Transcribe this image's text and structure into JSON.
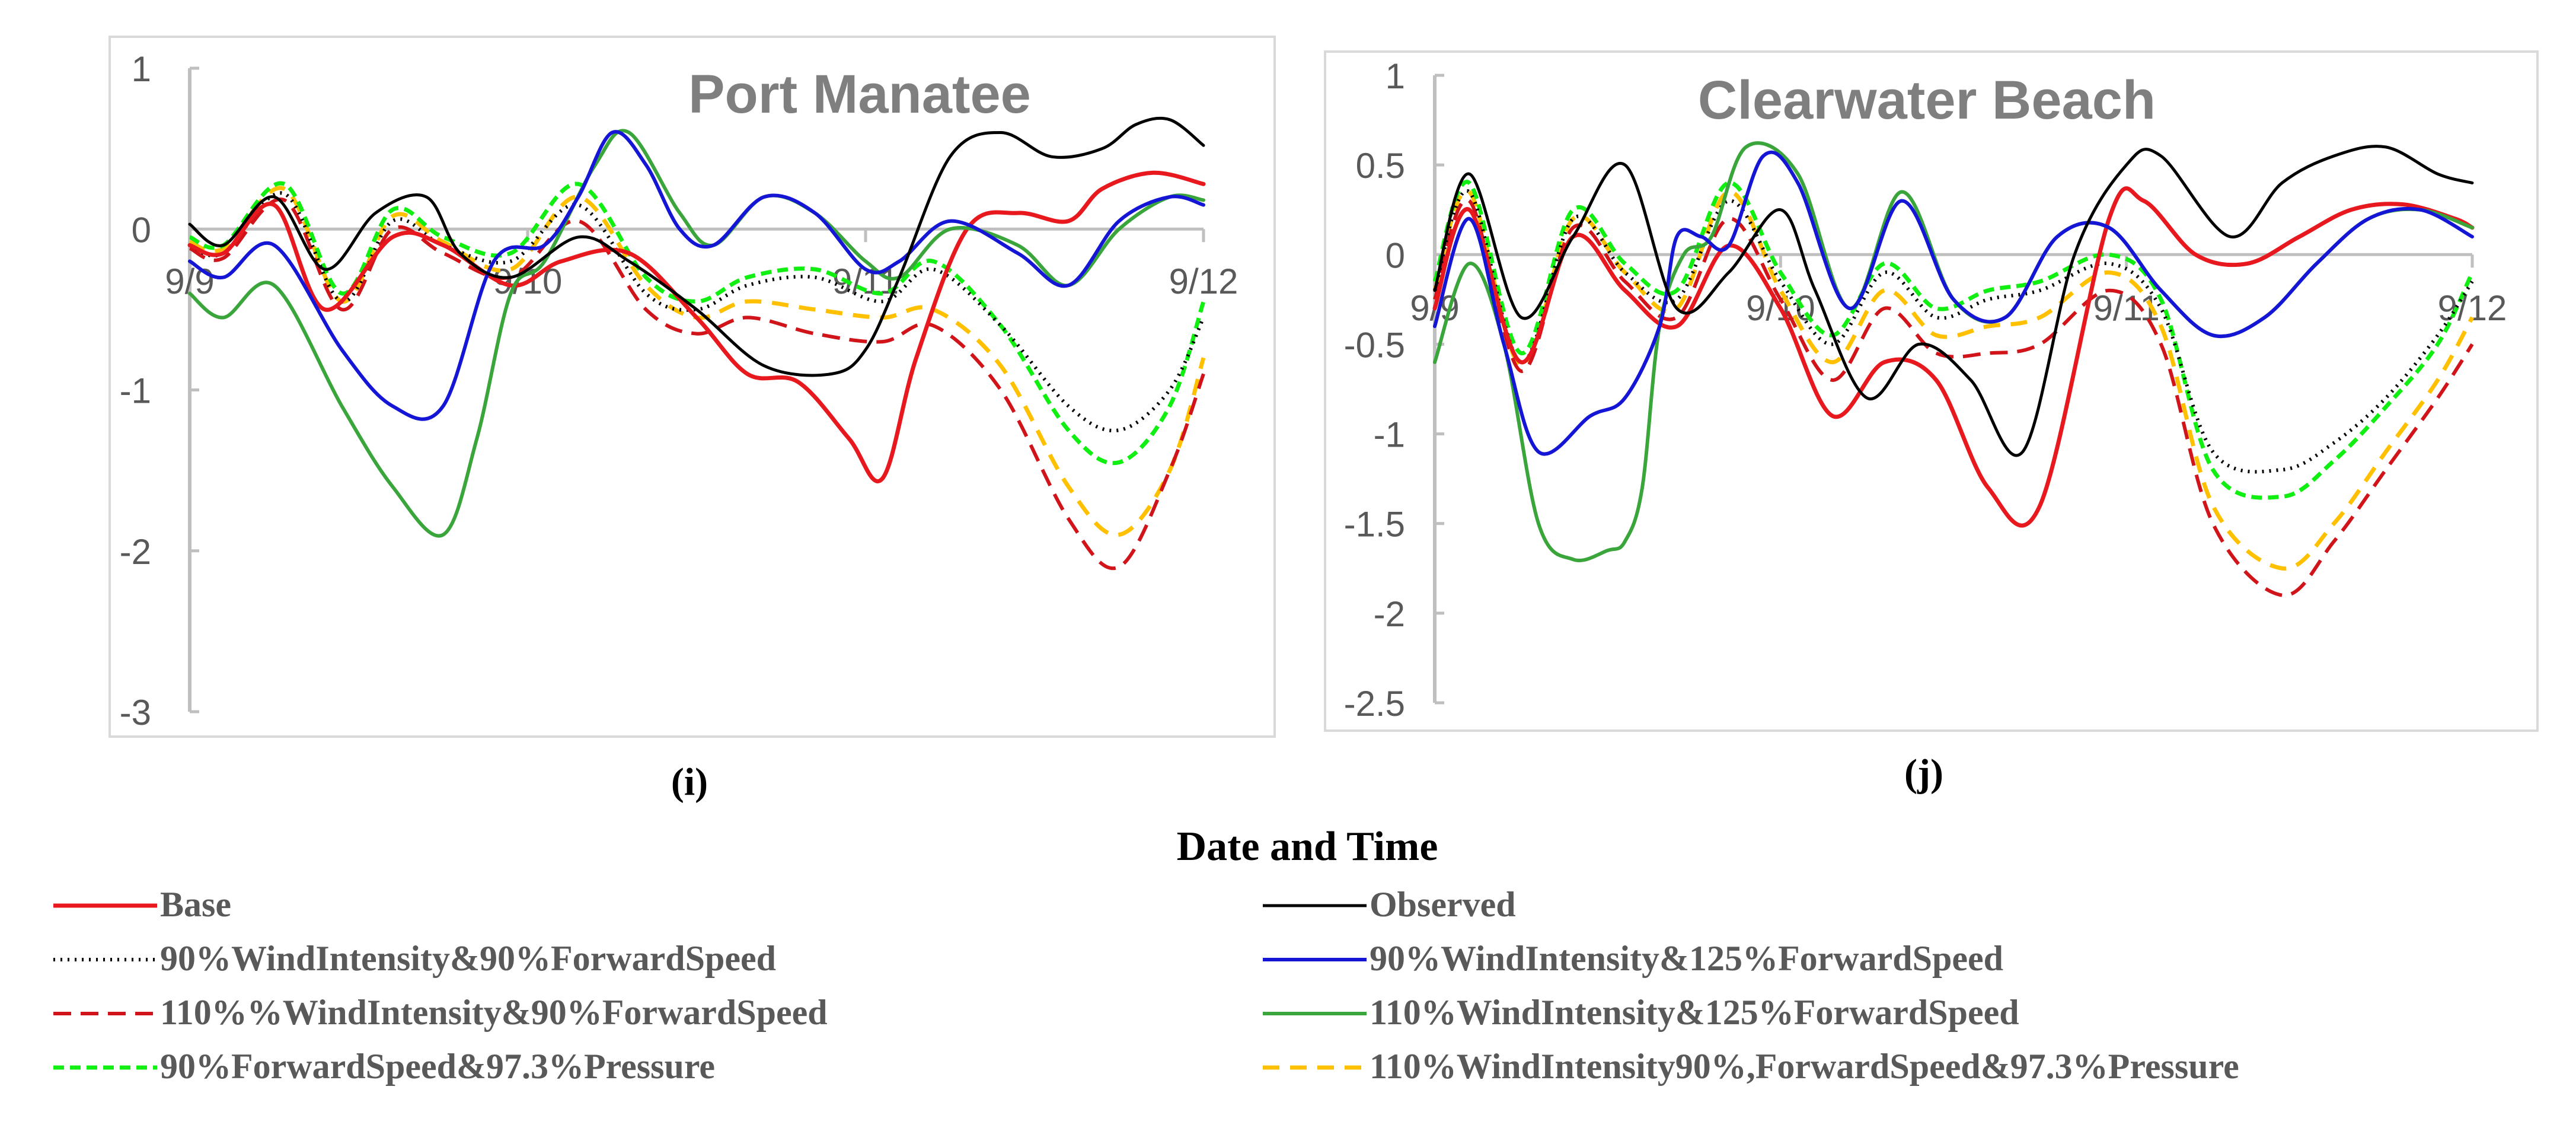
{
  "figure": {
    "common_xlabel": "Date and Time",
    "colors": {
      "base": "#e8191e",
      "observed": "#000000",
      "wi90_fs90": "#000000",
      "wi90_fs125": "#1515d6",
      "wi110_fs90": "#d0141a",
      "wi110_fs125": "#3aa53a",
      "fs90_p973": "#11ee11",
      "wi110_fs90_p973": "#ffc000",
      "axis": "#bfbfbf",
      "frame": "#d9d9d9",
      "tick_text": "#595959",
      "title_text": "#7f7f7f",
      "legend_text": "#595959"
    }
  },
  "legend": [
    {
      "key": "base",
      "label": "Base",
      "style": "solid"
    },
    {
      "key": "observed",
      "label": "Observed",
      "style": "solid-thin"
    },
    {
      "key": "wi90_fs90",
      "label": "90%WindIntensity&90%ForwardSpeed",
      "style": "dotted"
    },
    {
      "key": "wi90_fs125",
      "label": "90%WindIntensity&125%ForwardSpeed",
      "style": "solid"
    },
    {
      "key": "wi110_fs90",
      "label": "110%%WindIntensity&90%ForwardSpeed",
      "style": "dashed"
    },
    {
      "key": "wi110_fs125",
      "label": "110%WindIntensity&125%ForwardSpeed",
      "style": "solid"
    },
    {
      "key": "fs90_p973",
      "label": "90%ForwardSpeed&97.3%Pressure",
      "style": "dashed-short"
    },
    {
      "key": "wi110_fs90_p973",
      "label": "110%WindIntensity90%,ForwardSpeed&97.3%Pressure",
      "style": "dashed"
    }
  ],
  "chart_data": [
    {
      "type": "line",
      "panel_label": "(i)",
      "title": "Port Manatee",
      "xlabel": "",
      "ylabel": "",
      "x_ticks": [
        "9/9",
        "9/10",
        "9/11",
        "9/12"
      ],
      "xlim": [
        0,
        3
      ],
      "ylim": [
        -3,
        1
      ],
      "y_ticks": [
        1,
        0,
        -1,
        -2,
        -3
      ],
      "grid": false,
      "series": [
        {
          "key": "base",
          "name": "Base",
          "x": [
            0,
            0.1,
            0.25,
            0.4,
            0.6,
            0.75,
            0.95,
            1.1,
            1.3,
            1.5,
            1.65,
            1.8,
            1.95,
            2.05,
            2.15,
            2.3,
            2.45,
            2.6,
            2.7,
            2.85,
            3.0
          ],
          "y": [
            -0.1,
            -0.15,
            0.15,
            -0.5,
            -0.05,
            -0.1,
            -0.35,
            -0.2,
            -0.15,
            -0.55,
            -0.9,
            -0.95,
            -1.3,
            -1.55,
            -0.8,
            0.0,
            0.1,
            0.05,
            0.25,
            0.35,
            0.28
          ]
        },
        {
          "key": "observed",
          "name": "Observed",
          "x": [
            0,
            0.1,
            0.25,
            0.4,
            0.55,
            0.7,
            0.8,
            0.95,
            1.15,
            1.3,
            1.5,
            1.7,
            1.9,
            2.0,
            2.1,
            2.25,
            2.4,
            2.55,
            2.7,
            2.8,
            2.9,
            3.0
          ],
          "y": [
            0.03,
            -0.1,
            0.2,
            -0.25,
            0.1,
            0.2,
            -0.15,
            -0.3,
            -0.05,
            -0.2,
            -0.5,
            -0.85,
            -0.9,
            -0.75,
            -0.3,
            0.45,
            0.6,
            0.45,
            0.5,
            0.65,
            0.68,
            0.52
          ]
        },
        {
          "key": "wi90_fs90",
          "name": "90%WindIntensity&90%ForwardSpeed",
          "x": [
            0,
            0.1,
            0.28,
            0.45,
            0.6,
            0.75,
            0.95,
            1.15,
            1.35,
            1.5,
            1.65,
            1.85,
            2.05,
            2.2,
            2.4,
            2.6,
            2.75,
            2.9,
            3.0
          ],
          "y": [
            -0.1,
            -0.15,
            0.22,
            -0.45,
            0.05,
            -0.1,
            -0.2,
            0.15,
            -0.4,
            -0.5,
            -0.35,
            -0.3,
            -0.45,
            -0.25,
            -0.6,
            -1.1,
            -1.25,
            -1.0,
            -0.55
          ]
        },
        {
          "key": "wi90_fs125",
          "name": "90%WindIntensity&125%ForwardSpeed",
          "x": [
            0,
            0.1,
            0.25,
            0.45,
            0.6,
            0.75,
            0.9,
            1.05,
            1.15,
            1.25,
            1.35,
            1.45,
            1.55,
            1.7,
            1.85,
            2.0,
            2.1,
            2.25,
            2.45,
            2.6,
            2.75,
            2.9,
            3.0
          ],
          "y": [
            -0.2,
            -0.3,
            -0.1,
            -0.75,
            -1.1,
            -1.1,
            -0.2,
            -0.1,
            0.2,
            0.6,
            0.4,
            0.0,
            -0.1,
            0.2,
            0.1,
            -0.25,
            -0.2,
            0.05,
            -0.15,
            -0.35,
            0.05,
            0.2,
            0.15
          ]
        },
        {
          "key": "wi110_fs90",
          "name": "110%%WindIntensity&90%ForwardSpeed",
          "x": [
            0,
            0.1,
            0.28,
            0.45,
            0.6,
            0.75,
            0.95,
            1.15,
            1.35,
            1.5,
            1.65,
            1.85,
            2.05,
            2.2,
            2.4,
            2.6,
            2.75,
            2.9,
            3.0
          ],
          "y": [
            -0.12,
            -0.18,
            0.18,
            -0.5,
            0.0,
            -0.15,
            -0.3,
            0.05,
            -0.5,
            -0.65,
            -0.55,
            -0.65,
            -0.7,
            -0.6,
            -1.0,
            -1.8,
            -2.1,
            -1.5,
            -0.9
          ]
        },
        {
          "key": "wi110_fs125",
          "name": "110%WindIntensity&125%ForwardSpeed",
          "x": [
            0,
            0.1,
            0.25,
            0.45,
            0.6,
            0.75,
            0.85,
            0.95,
            1.05,
            1.2,
            1.3,
            1.45,
            1.55,
            1.7,
            1.85,
            2.0,
            2.1,
            2.25,
            2.45,
            2.6,
            2.75,
            2.9,
            3.0
          ],
          "y": [
            -0.4,
            -0.55,
            -0.35,
            -1.1,
            -1.6,
            -1.9,
            -1.3,
            -0.4,
            -0.2,
            0.4,
            0.6,
            0.1,
            -0.1,
            0.2,
            0.1,
            -0.2,
            -0.3,
            0.0,
            -0.1,
            -0.35,
            0.0,
            0.2,
            0.18
          ]
        },
        {
          "key": "fs90_p973",
          "name": "90%ForwardSpeed&97.3%Pressure",
          "x": [
            0,
            0.1,
            0.28,
            0.45,
            0.6,
            0.75,
            0.95,
            1.15,
            1.35,
            1.5,
            1.65,
            1.85,
            2.05,
            2.2,
            2.4,
            2.6,
            2.75,
            2.9,
            3.0
          ],
          "y": [
            -0.05,
            -0.1,
            0.28,
            -0.4,
            0.12,
            -0.05,
            -0.15,
            0.28,
            -0.3,
            -0.45,
            -0.3,
            -0.25,
            -0.4,
            -0.2,
            -0.6,
            -1.25,
            -1.45,
            -1.1,
            -0.45
          ]
        },
        {
          "key": "wi110_fs90_p973",
          "name": "110%WindIntensity90%,ForwardSpeed&97.3%Pressure",
          "x": [
            0,
            0.1,
            0.28,
            0.45,
            0.6,
            0.75,
            0.95,
            1.15,
            1.35,
            1.5,
            1.65,
            1.85,
            2.05,
            2.2,
            2.4,
            2.6,
            2.75,
            2.9,
            3.0
          ],
          "y": [
            -0.08,
            -0.12,
            0.25,
            -0.45,
            0.08,
            -0.08,
            -0.25,
            0.2,
            -0.35,
            -0.55,
            -0.45,
            -0.5,
            -0.55,
            -0.5,
            -0.85,
            -1.6,
            -1.9,
            -1.5,
            -0.8
          ]
        }
      ]
    },
    {
      "type": "line",
      "panel_label": "(j)",
      "title": "Clearwater Beach",
      "xlabel": "",
      "ylabel": "",
      "x_ticks": [
        "9/9",
        "9/10",
        "9/11",
        "9/12"
      ],
      "xlim": [
        0,
        3
      ],
      "ylim": [
        -2.5,
        1
      ],
      "y_ticks": [
        1,
        0.5,
        0,
        -0.5,
        -1,
        -1.5,
        -2,
        -2.5
      ],
      "grid": false,
      "series": [
        {
          "key": "base",
          "name": "Base",
          "x": [
            0,
            0.1,
            0.25,
            0.4,
            0.55,
            0.7,
            0.85,
            1.0,
            1.15,
            1.3,
            1.45,
            1.6,
            1.75,
            1.95,
            2.05,
            2.2,
            2.35,
            2.5,
            2.65,
            2.8,
            2.95,
            3.0
          ],
          "y": [
            -0.3,
            0.25,
            -0.6,
            0.1,
            -0.2,
            -0.4,
            0.05,
            -0.3,
            -0.9,
            -0.6,
            -0.7,
            -1.3,
            -1.4,
            0.2,
            0.3,
            0.0,
            -0.05,
            0.1,
            0.25,
            0.28,
            0.2,
            0.15
          ]
        },
        {
          "key": "observed",
          "name": "Observed",
          "x": [
            0,
            0.1,
            0.25,
            0.4,
            0.55,
            0.7,
            0.85,
            1.0,
            1.1,
            1.25,
            1.4,
            1.55,
            1.7,
            1.85,
            2.0,
            2.1,
            2.3,
            2.45,
            2.6,
            2.75,
            2.9,
            3.0
          ],
          "y": [
            -0.2,
            0.45,
            -0.35,
            0.1,
            0.5,
            -0.3,
            -0.1,
            0.25,
            -0.2,
            -0.8,
            -0.5,
            -0.7,
            -1.1,
            0.0,
            0.5,
            0.55,
            0.1,
            0.4,
            0.55,
            0.6,
            0.45,
            0.4
          ]
        },
        {
          "key": "wi90_fs90",
          "name": "90%WindIntensity&90%ForwardSpeed",
          "x": [
            0,
            0.1,
            0.25,
            0.4,
            0.55,
            0.7,
            0.85,
            1.0,
            1.15,
            1.3,
            1.45,
            1.6,
            1.75,
            1.95,
            2.1,
            2.25,
            2.45,
            2.6,
            2.75,
            2.9,
            3.0
          ],
          "y": [
            -0.2,
            0.35,
            -0.6,
            0.2,
            -0.1,
            -0.25,
            0.3,
            -0.15,
            -0.5,
            -0.1,
            -0.35,
            -0.25,
            -0.2,
            -0.05,
            -0.3,
            -1.1,
            -1.2,
            -1.05,
            -0.8,
            -0.45,
            -0.15
          ]
        },
        {
          "key": "wi90_fs125",
          "name": "90%WindIntensity&125%ForwardSpeed",
          "x": [
            0,
            0.1,
            0.2,
            0.3,
            0.45,
            0.55,
            0.65,
            0.7,
            0.77,
            0.85,
            0.95,
            1.05,
            1.2,
            1.35,
            1.5,
            1.65,
            1.8,
            1.95,
            2.1,
            2.25,
            2.4,
            2.55,
            2.7,
            2.85,
            3.0
          ],
          "y": [
            -0.4,
            0.2,
            -0.5,
            -1.1,
            -0.9,
            -0.8,
            -0.4,
            0.1,
            0.1,
            0.05,
            0.55,
            0.4,
            -0.3,
            0.3,
            -0.25,
            -0.35,
            0.1,
            0.15,
            -0.2,
            -0.45,
            -0.35,
            -0.05,
            0.2,
            0.25,
            0.1
          ]
        },
        {
          "key": "wi110_fs90",
          "name": "110%%WindIntensity&90%ForwardSpeed",
          "x": [
            0,
            0.1,
            0.25,
            0.4,
            0.55,
            0.7,
            0.85,
            1.0,
            1.15,
            1.3,
            1.45,
            1.6,
            1.75,
            1.95,
            2.1,
            2.25,
            2.45,
            2.6,
            2.75,
            2.9,
            3.0
          ],
          "y": [
            -0.25,
            0.3,
            -0.65,
            0.15,
            -0.15,
            -0.35,
            0.2,
            -0.25,
            -0.7,
            -0.3,
            -0.55,
            -0.55,
            -0.5,
            -0.2,
            -0.5,
            -1.5,
            -1.9,
            -1.6,
            -1.2,
            -0.8,
            -0.5
          ]
        },
        {
          "key": "wi110_fs125",
          "name": "110%WindIntensity&125%ForwardSpeed",
          "x": [
            0,
            0.1,
            0.2,
            0.3,
            0.4,
            0.5,
            0.55,
            0.6,
            0.65,
            0.72,
            0.8,
            0.9,
            1.05,
            1.2,
            1.35,
            1.5,
            1.65,
            1.8,
            1.95,
            2.1,
            2.25,
            2.4,
            2.55,
            2.7,
            2.85,
            3.0
          ],
          "y": [
            -0.6,
            -0.05,
            -0.5,
            -1.5,
            -1.7,
            -1.65,
            -1.6,
            -1.3,
            -0.4,
            0.0,
            0.1,
            0.6,
            0.45,
            -0.3,
            0.35,
            -0.25,
            -0.35,
            0.1,
            0.15,
            -0.2,
            -0.45,
            -0.35,
            -0.05,
            0.2,
            0.25,
            0.15
          ]
        },
        {
          "key": "fs90_p973",
          "name": "90%ForwardSpeed&97.3%Pressure",
          "x": [
            0,
            0.1,
            0.25,
            0.4,
            0.55,
            0.7,
            0.85,
            1.0,
            1.15,
            1.3,
            1.45,
            1.6,
            1.75,
            1.95,
            2.1,
            2.25,
            2.45,
            2.6,
            2.75,
            2.9,
            3.0
          ],
          "y": [
            -0.15,
            0.4,
            -0.55,
            0.25,
            -0.05,
            -0.2,
            0.4,
            -0.1,
            -0.45,
            -0.05,
            -0.3,
            -0.2,
            -0.15,
            0.0,
            -0.25,
            -1.2,
            -1.35,
            -1.15,
            -0.85,
            -0.5,
            -0.1
          ]
        },
        {
          "key": "wi110_fs90_p973",
          "name": "110%WindIntensity90%,ForwardSpeed&97.3%Pressure",
          "x": [
            0,
            0.1,
            0.25,
            0.4,
            0.55,
            0.7,
            0.85,
            1.0,
            1.15,
            1.3,
            1.45,
            1.6,
            1.75,
            1.95,
            2.1,
            2.25,
            2.45,
            2.6,
            2.75,
            2.9,
            3.0
          ],
          "y": [
            -0.2,
            0.35,
            -0.62,
            0.2,
            -0.1,
            -0.3,
            0.35,
            -0.2,
            -0.6,
            -0.2,
            -0.45,
            -0.4,
            -0.35,
            -0.1,
            -0.4,
            -1.4,
            -1.75,
            -1.5,
            -1.1,
            -0.7,
            -0.35
          ]
        }
      ]
    }
  ]
}
